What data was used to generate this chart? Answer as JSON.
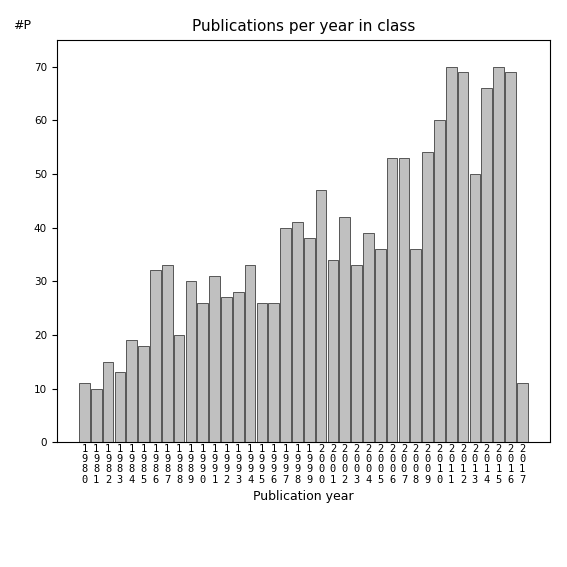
{
  "title": "Publications per year in class",
  "xlabel": "Publication year",
  "ylabel": "#P",
  "years": [
    1980,
    1981,
    1982,
    1983,
    1984,
    1985,
    1986,
    1987,
    1988,
    1989,
    1990,
    1991,
    1992,
    1993,
    1994,
    1995,
    1996,
    1997,
    1998,
    1999,
    2000,
    2001,
    2002,
    2003,
    2004,
    2005,
    2006,
    2007,
    2008,
    2009,
    2010,
    2011,
    2012,
    2013,
    2014,
    2015,
    2016,
    2017
  ],
  "values": [
    11,
    10,
    15,
    13,
    19,
    18,
    32,
    33,
    20,
    30,
    26,
    31,
    27,
    28,
    33,
    26,
    26,
    40,
    41,
    38,
    47,
    34,
    42,
    33,
    39,
    36,
    53,
    53,
    36,
    54,
    60,
    70,
    69,
    50,
    66,
    70,
    69,
    11
  ],
  "bar_color": "#c0c0c0",
  "bar_edge_color": "#404040",
  "ylim": [
    0,
    75
  ],
  "yticks": [
    0,
    10,
    20,
    30,
    40,
    50,
    60,
    70
  ],
  "bg_color": "#ffffff",
  "title_fontsize": 11,
  "label_fontsize": 9,
  "tick_fontsize": 7.5
}
